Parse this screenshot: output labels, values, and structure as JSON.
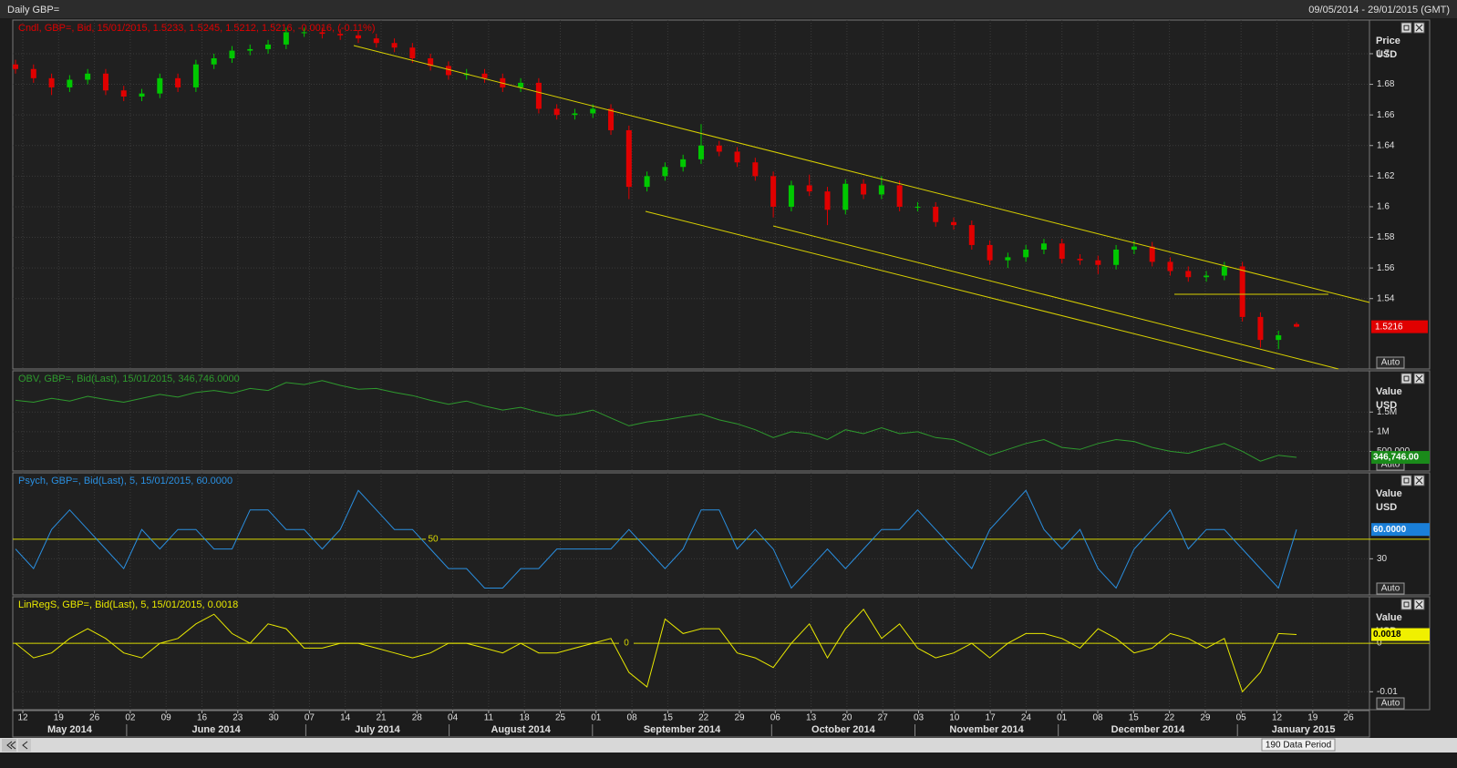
{
  "header": {
    "title": "Daily GBP=",
    "range": "09/05/2014 - 29/01/2015 (GMT)"
  },
  "footer": {
    "period": "190 Data Period"
  },
  "controls": {
    "auto": "Auto"
  },
  "time_axis": {
    "days": [
      "12",
      "19",
      "26",
      "02",
      "09",
      "16",
      "23",
      "30",
      "07",
      "14",
      "21",
      "28",
      "04",
      "11",
      "18",
      "25",
      "01",
      "08",
      "15",
      "22",
      "29",
      "06",
      "13",
      "20",
      "27",
      "03",
      "10",
      "17",
      "24",
      "01",
      "08",
      "15",
      "22",
      "29",
      "05",
      "12",
      "19",
      "26"
    ],
    "months": [
      "May 2014",
      "June 2014",
      "July 2014",
      "August 2014",
      "September 2014",
      "October 2014",
      "November 2014",
      "December 2014",
      "January 2015"
    ]
  },
  "chart_data": [
    {
      "type": "candlestick",
      "title": "Cndl, GBP=, Bid, 15/01/2015, 1.5233, 1.5245, 1.5212, 1.5216, -0.0016, (-0.11%)",
      "y_label": "Price",
      "y_unit": "USD",
      "ylim": [
        1.494,
        1.722
      ],
      "yticks": [
        1.54,
        1.56,
        1.58,
        1.6,
        1.62,
        1.64,
        1.66,
        1.68,
        1.7
      ],
      "grid": true,
      "up_color": "#00c800",
      "down_color": "#e00000",
      "open": [
        1.693,
        1.69,
        1.684,
        1.678,
        1.683,
        1.687,
        1.676,
        1.672,
        1.674,
        1.684,
        1.678,
        1.693,
        1.697,
        1.702,
        1.703,
        1.706,
        1.714,
        1.714,
        1.713,
        1.712,
        1.71,
        1.707,
        1.704,
        1.697,
        1.692,
        1.686,
        1.687,
        1.684,
        1.678,
        1.681,
        1.664,
        1.66,
        1.661,
        1.664,
        1.65,
        1.613,
        1.62,
        1.626,
        1.631,
        1.64,
        1.636,
        1.629,
        1.62,
        1.6,
        1.614,
        1.61,
        1.598,
        1.615,
        1.608,
        1.614,
        1.6,
        1.6,
        1.59,
        1.588,
        1.575,
        1.565,
        1.567,
        1.572,
        1.576,
        1.566,
        1.565,
        1.562,
        1.572,
        1.574,
        1.564,
        1.558,
        1.554,
        1.555,
        1.561,
        1.528,
        1.513,
        1.5233
      ],
      "high": [
        1.696,
        1.693,
        1.687,
        1.686,
        1.69,
        1.69,
        1.679,
        1.677,
        1.687,
        1.687,
        1.696,
        1.7,
        1.705,
        1.706,
        1.709,
        1.717,
        1.717,
        1.717,
        1.716,
        1.715,
        1.713,
        1.71,
        1.707,
        1.7,
        1.695,
        1.69,
        1.69,
        1.687,
        1.684,
        1.684,
        1.667,
        1.664,
        1.667,
        1.667,
        1.653,
        1.623,
        1.629,
        1.634,
        1.654,
        1.643,
        1.639,
        1.632,
        1.623,
        1.617,
        1.621,
        1.613,
        1.618,
        1.618,
        1.62,
        1.617,
        1.603,
        1.603,
        1.593,
        1.591,
        1.578,
        1.57,
        1.575,
        1.579,
        1.579,
        1.569,
        1.568,
        1.575,
        1.578,
        1.577,
        1.567,
        1.561,
        1.558,
        1.564,
        1.564,
        1.531,
        1.519,
        1.5245
      ],
      "low": [
        1.687,
        1.681,
        1.673,
        1.675,
        1.68,
        1.673,
        1.669,
        1.669,
        1.671,
        1.675,
        1.675,
        1.69,
        1.694,
        1.699,
        1.7,
        1.703,
        1.711,
        1.71,
        1.709,
        1.707,
        1.704,
        1.701,
        1.694,
        1.689,
        1.683,
        1.683,
        1.681,
        1.675,
        1.675,
        1.661,
        1.657,
        1.657,
        1.658,
        1.647,
        1.605,
        1.61,
        1.617,
        1.623,
        1.628,
        1.633,
        1.626,
        1.617,
        1.593,
        1.597,
        1.607,
        1.588,
        1.595,
        1.605,
        1.605,
        1.597,
        1.597,
        1.587,
        1.585,
        1.572,
        1.562,
        1.56,
        1.564,
        1.569,
        1.563,
        1.562,
        1.556,
        1.559,
        1.569,
        1.561,
        1.555,
        1.551,
        1.551,
        1.552,
        1.525,
        1.508,
        1.507,
        1.5212
      ],
      "close": [
        1.69,
        1.684,
        1.678,
        1.683,
        1.687,
        1.676,
        1.672,
        1.674,
        1.684,
        1.678,
        1.693,
        1.697,
        1.702,
        1.703,
        1.706,
        1.714,
        1.714,
        1.713,
        1.712,
        1.71,
        1.707,
        1.704,
        1.697,
        1.692,
        1.686,
        1.687,
        1.684,
        1.678,
        1.681,
        1.664,
        1.66,
        1.661,
        1.664,
        1.65,
        1.613,
        1.62,
        1.626,
        1.631,
        1.64,
        1.636,
        1.629,
        1.62,
        1.6,
        1.614,
        1.61,
        1.598,
        1.615,
        1.608,
        1.614,
        1.6,
        1.6,
        1.59,
        1.588,
        1.575,
        1.565,
        1.567,
        1.572,
        1.576,
        1.566,
        1.565,
        1.562,
        1.572,
        1.574,
        1.564,
        1.558,
        1.554,
        1.555,
        1.561,
        1.528,
        1.513,
        1.516,
        1.5216
      ]
    },
    {
      "type": "line",
      "title": "OBV, GBP=, Bid(Last), 15/01/2015, 346,746.0000",
      "y_label": "Value",
      "y_unit": "USD",
      "ylim": [
        0,
        2550000
      ],
      "yticks": [
        {
          "value": 500000,
          "label": "500,000"
        },
        {
          "value": 1000000,
          "label": "1M"
        },
        {
          "value": 1500000,
          "label": "1.5M"
        }
      ],
      "grid": true,
      "color": "#2e9a2e",
      "current_label": "346,746.00",
      "current_color": "#1a8a1a",
      "values": [
        1800000,
        1750000,
        1850000,
        1780000,
        1900000,
        1820000,
        1750000,
        1850000,
        1950000,
        1880000,
        2000000,
        2050000,
        1980000,
        2100000,
        2050000,
        2250000,
        2200000,
        2300000,
        2180000,
        2080000,
        2100000,
        2000000,
        1920000,
        1800000,
        1700000,
        1780000,
        1650000,
        1550000,
        1620000,
        1500000,
        1400000,
        1450000,
        1550000,
        1350000,
        1150000,
        1250000,
        1300000,
        1380000,
        1450000,
        1300000,
        1200000,
        1050000,
        850000,
        1000000,
        950000,
        800000,
        1050000,
        950000,
        1100000,
        950000,
        1000000,
        850000,
        800000,
        600000,
        400000,
        550000,
        700000,
        800000,
        600000,
        550000,
        700000,
        800000,
        750000,
        600000,
        500000,
        450000,
        580000,
        700000,
        500000,
        250000,
        400000,
        346746
      ]
    },
    {
      "type": "line",
      "title": "Psych, GBP=, Bid(Last), 5, 15/01/2015, 60.0000",
      "y_label": "Value",
      "y_unit": "USD",
      "ylim": [
        -7,
        118
      ],
      "yticks": [
        30
      ],
      "grid": true,
      "color": "#2a8fe0",
      "reference_line": 50,
      "reference_color": "#d8d800",
      "current_label": "60.0000",
      "current_color": "#1a7fd8",
      "values": [
        40,
        20,
        60,
        80,
        60,
        40,
        20,
        60,
        40,
        60,
        60,
        40,
        40,
        80,
        80,
        60,
        60,
        40,
        60,
        100,
        80,
        60,
        60,
        40,
        20,
        20,
        0,
        0,
        20,
        20,
        40,
        40,
        40,
        40,
        60,
        40,
        20,
        40,
        80,
        80,
        40,
        60,
        40,
        0,
        20,
        40,
        20,
        40,
        60,
        60,
        80,
        60,
        40,
        20,
        60,
        80,
        100,
        60,
        40,
        60,
        20,
        0,
        40,
        60,
        80,
        40,
        60,
        60,
        40,
        20,
        0,
        60
      ]
    },
    {
      "type": "line",
      "title": "LinRegS, GBP=, Bid(Last), 5, 15/01/2015, 0.0018",
      "y_label": "Value",
      "y_unit": "USD",
      "ylim": [
        -0.0137,
        0.0096
      ],
      "yticks": [
        0,
        -0.01
      ],
      "grid": true,
      "color": "#e8e800",
      "reference_line": 0,
      "reference_color": "#d8d800",
      "current_color": "#f0f000",
      "values": [
        0.0,
        -0.003,
        -0.002,
        0.001,
        0.003,
        0.001,
        -0.002,
        -0.003,
        0.0,
        0.001,
        0.004,
        0.006,
        0.002,
        0.0,
        0.004,
        0.003,
        -0.001,
        -0.001,
        0.0,
        0.0,
        -0.001,
        -0.002,
        -0.003,
        -0.002,
        0.0,
        0.0,
        -0.001,
        -0.002,
        0.0,
        -0.002,
        -0.002,
        -0.001,
        0.0,
        0.001,
        -0.006,
        -0.009,
        0.005,
        0.002,
        0.003,
        0.003,
        -0.002,
        -0.003,
        -0.005,
        0.0,
        0.004,
        -0.003,
        0.003,
        0.007,
        0.001,
        0.004,
        -0.001,
        -0.003,
        -0.002,
        0.0,
        -0.003,
        0.0,
        0.002,
        0.002,
        0.001,
        -0.001,
        0.003,
        0.001,
        -0.002,
        -0.001,
        0.002,
        0.001,
        -0.001,
        0.001,
        -0.01,
        -0.006,
        0.002,
        0.0018
      ]
    }
  ]
}
